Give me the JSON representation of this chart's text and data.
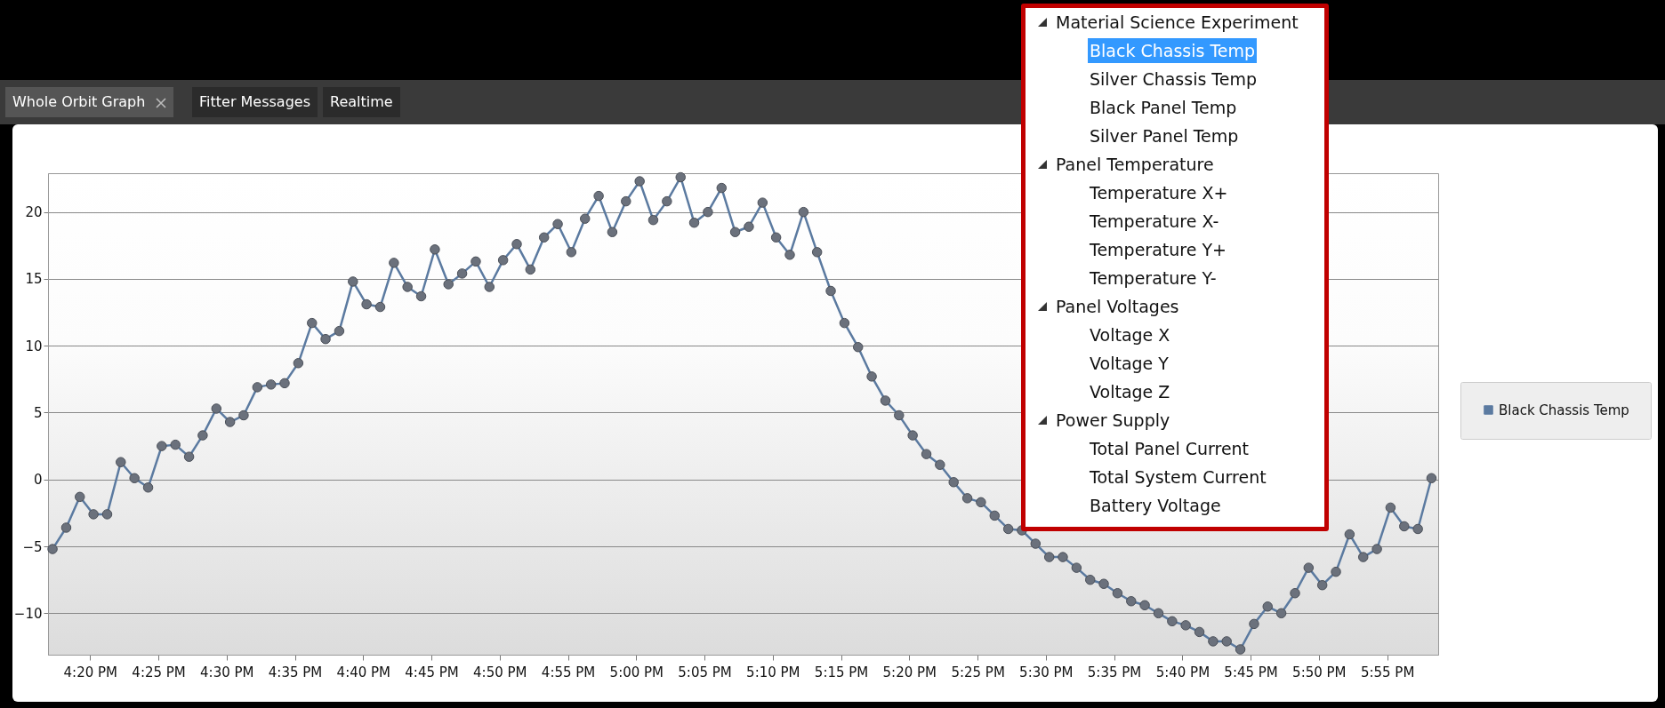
{
  "chart_data": {
    "type": "line",
    "annotations": [
      "Whole Orbit Graph",
      "Fitter Messages",
      "Realtime",
      "Material Science Experiment",
      "Black Chassis Temp",
      "Silver Chassis Temp",
      "Black Panel Temp",
      "Silver Panel Temp",
      "Panel Temperature",
      "Temperature X+",
      "Temperature X-",
      "Temperature Y+",
      "Temperature Y-",
      "Panel Voltages",
      "Voltage X",
      "Voltage Y",
      "Voltage Z",
      "Power Supply",
      "Total Panel Current",
      "Total System Current",
      "Battery Voltage"
    ],
    "x": [
      16.2875,
      16.3042,
      16.3208,
      16.3375,
      16.3542,
      16.3708,
      16.3875,
      16.4042,
      16.4208,
      16.4375,
      16.4542,
      16.4708,
      16.4875,
      16.5042,
      16.5208,
      16.5375,
      16.5542,
      16.5708,
      16.5875,
      16.6042,
      16.6208,
      16.6375,
      16.6542,
      16.6708,
      16.6875,
      16.7042,
      16.7208,
      16.7375,
      16.7542,
      16.7708,
      16.7875,
      16.8042,
      16.8208,
      16.8375,
      16.8542,
      16.8708,
      16.8875,
      16.9042,
      16.9208,
      16.9375,
      16.9542,
      16.9708,
      16.9875,
      17.0042,
      17.0208,
      17.0375,
      17.0542,
      17.0708,
      17.0875,
      17.1042,
      17.1208,
      17.1375,
      17.1542,
      17.1708,
      17.1875,
      17.2042,
      17.2208,
      17.2375,
      17.2542,
      17.2708,
      17.2875,
      17.3042,
      17.3208,
      17.3375,
      17.3542,
      17.3708,
      17.3875,
      17.4042,
      17.4208,
      17.4375,
      17.4542,
      17.4708,
      17.4875,
      17.5042,
      17.5208,
      17.5375,
      17.5542,
      17.5708,
      17.5875,
      17.6042,
      17.6208,
      17.6375,
      17.6542,
      17.6708,
      17.6875,
      17.7042,
      17.7208,
      17.7375,
      17.7542,
      17.7708,
      17.7875,
      17.8042,
      17.8208,
      17.8375,
      17.8542,
      17.8708,
      17.8875,
      17.9042,
      17.9208,
      17.9375,
      17.9542,
      17.9708
    ],
    "series": [
      {
        "name": "Black Chassis Temp",
        "color": "#5b7aa0",
        "values": [
          -5.2,
          -3.6,
          -1.3,
          -2.6,
          -2.6,
          1.3,
          0.1,
          -0.6,
          2.5,
          2.6,
          1.7,
          3.3,
          5.3,
          4.3,
          4.8,
          6.9,
          7.1,
          7.2,
          8.7,
          11.7,
          10.5,
          11.1,
          14.8,
          13.1,
          12.9,
          16.2,
          14.4,
          13.7,
          17.2,
          14.6,
          15.4,
          16.3,
          14.4,
          16.4,
          17.6,
          15.7,
          18.1,
          19.1,
          17.0,
          19.5,
          21.2,
          18.5,
          20.8,
          22.3,
          19.4,
          20.8,
          22.6,
          19.2,
          20.0,
          21.8,
          18.5,
          18.9,
          20.7,
          18.1,
          16.8,
          20.0,
          17.0,
          14.1,
          11.7,
          9.9,
          7.7,
          5.9,
          4.8,
          3.3,
          1.9,
          1.1,
          -0.2,
          -1.4,
          -1.7,
          -2.7,
          -3.7,
          -3.8,
          -4.8,
          -5.8,
          -5.8,
          -6.6,
          -7.5,
          -7.8,
          -8.5,
          -9.1,
          -9.4,
          -10.0,
          -10.6,
          -10.9,
          -11.4,
          -12.1,
          -12.1,
          -12.7,
          -10.8,
          -9.5,
          -10.0,
          -8.5,
          -6.6,
          -7.9,
          -6.9,
          -4.1,
          -5.8,
          -5.2,
          -2.1,
          -3.5,
          -3.7,
          0.1
        ]
      }
    ],
    "xlim": [
      16.282,
      17.979
    ],
    "xticks": [
      {
        "value": 16.3333,
        "label": "4:20 PM"
      },
      {
        "value": 16.4167,
        "label": "4:25 PM"
      },
      {
        "value": 16.5,
        "label": "4:30 PM"
      },
      {
        "value": 16.5833,
        "label": "4:35 PM"
      },
      {
        "value": 16.6667,
        "label": "4:40 PM"
      },
      {
        "value": 16.75,
        "label": "4:45 PM"
      },
      {
        "value": 16.8333,
        "label": "4:50 PM"
      },
      {
        "value": 16.9167,
        "label": "4:55 PM"
      },
      {
        "value": 17,
        "label": "5:00 PM"
      },
      {
        "value": 17.0833,
        "label": "5:05 PM"
      },
      {
        "value": 17.1667,
        "label": "5:10 PM"
      },
      {
        "value": 17.25,
        "label": "5:15 PM"
      },
      {
        "value": 17.3333,
        "label": "5:20 PM"
      },
      {
        "value": 17.4167,
        "label": "5:25 PM"
      },
      {
        "value": 17.5,
        "label": "5:30 PM"
      },
      {
        "value": 17.5833,
        "label": "5:35 PM"
      },
      {
        "value": 17.6667,
        "label": "5:40 PM"
      },
      {
        "value": 17.75,
        "label": "5:45 PM"
      },
      {
        "value": 17.8333,
        "label": "5:50 PM"
      },
      {
        "value": 17.9167,
        "label": "5:55 PM"
      }
    ],
    "ylim": [
      -13.1,
      22.9
    ],
    "yticks": [
      -10,
      -5,
      0,
      5,
      10,
      15,
      20
    ],
    "grid": "y",
    "legend": "right",
    "marker": "circle"
  }
}
